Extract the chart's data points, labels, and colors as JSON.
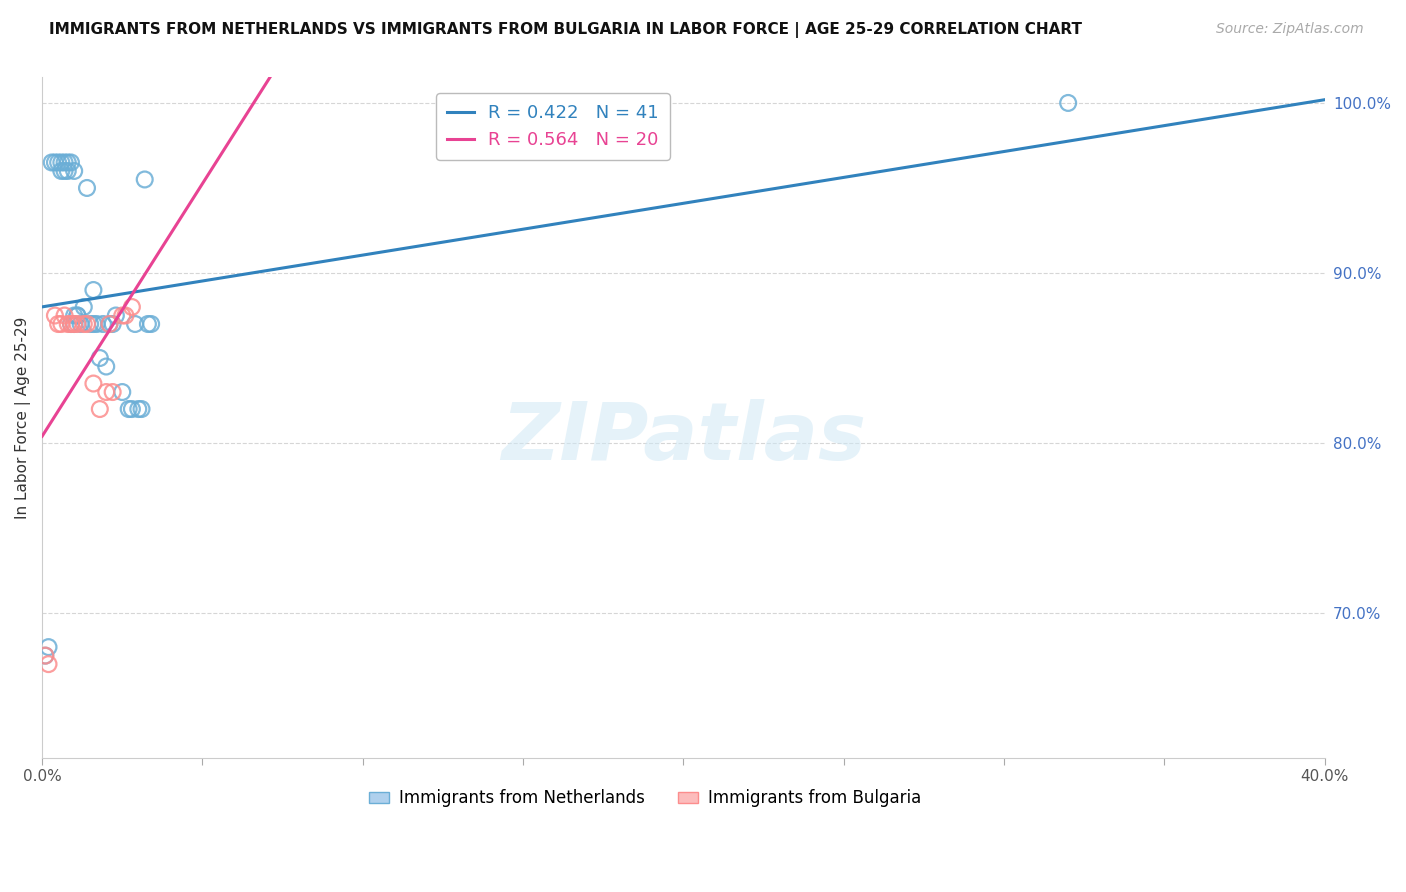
{
  "title": "IMMIGRANTS FROM NETHERLANDS VS IMMIGRANTS FROM BULGARIA IN LABOR FORCE | AGE 25-29 CORRELATION CHART",
  "source": "Source: ZipAtlas.com",
  "ylabel": "In Labor Force | Age 25-29",
  "legend_netherlands": "Immigrants from Netherlands",
  "legend_bulgaria": "Immigrants from Bulgaria",
  "r_netherlands": 0.422,
  "n_netherlands": 41,
  "r_bulgaria": 0.564,
  "n_bulgaria": 20,
  "color_netherlands": "#6baed6",
  "color_bulgaria": "#fc8d8d",
  "color_trendline_netherlands": "#3182bd",
  "color_trendline_bulgaria": "#e84393",
  "watermark": "ZIPatlas",
  "xlim": [
    0.0,
    0.4
  ],
  "ylim": [
    0.615,
    1.015
  ],
  "xticks": [
    0.0,
    0.05,
    0.1,
    0.15,
    0.2,
    0.25,
    0.3,
    0.35,
    0.4
  ],
  "xtick_labels_show": [
    "0.0%",
    "",
    "",
    "",
    "",
    "",
    "",
    "",
    "40.0%"
  ],
  "yticks_right": [
    0.7,
    0.8,
    0.9,
    1.0
  ],
  "ytick_right_labels": [
    "70.0%",
    "80.0%",
    "90.0%",
    "100.0%"
  ],
  "netherlands_x": [
    0.001,
    0.002,
    0.003,
    0.004,
    0.005,
    0.006,
    0.006,
    0.007,
    0.007,
    0.008,
    0.008,
    0.009,
    0.009,
    0.01,
    0.01,
    0.01,
    0.011,
    0.011,
    0.012,
    0.013,
    0.014,
    0.015,
    0.016,
    0.016,
    0.017,
    0.018,
    0.019,
    0.02,
    0.021,
    0.022,
    0.023,
    0.025,
    0.027,
    0.028,
    0.029,
    0.03,
    0.031,
    0.032,
    0.033,
    0.034,
    0.32
  ],
  "netherlands_y": [
    0.675,
    0.68,
    0.965,
    0.965,
    0.965,
    0.965,
    0.96,
    0.965,
    0.96,
    0.965,
    0.96,
    0.965,
    0.87,
    0.87,
    0.875,
    0.96,
    0.875,
    0.875,
    0.87,
    0.88,
    0.95,
    0.87,
    0.89,
    0.87,
    0.87,
    0.85,
    0.87,
    0.845,
    0.87,
    0.87,
    0.875,
    0.83,
    0.82,
    0.82,
    0.87,
    0.82,
    0.82,
    0.955,
    0.87,
    0.87,
    1.0
  ],
  "bulgaria_x": [
    0.001,
    0.002,
    0.004,
    0.005,
    0.006,
    0.007,
    0.008,
    0.009,
    0.01,
    0.011,
    0.013,
    0.014,
    0.016,
    0.018,
    0.02,
    0.021,
    0.022,
    0.025,
    0.026,
    0.028
  ],
  "bulgaria_y": [
    0.675,
    0.67,
    0.875,
    0.87,
    0.87,
    0.875,
    0.87,
    0.87,
    0.87,
    0.87,
    0.87,
    0.87,
    0.835,
    0.82,
    0.83,
    0.87,
    0.83,
    0.875,
    0.875,
    0.88
  ]
}
